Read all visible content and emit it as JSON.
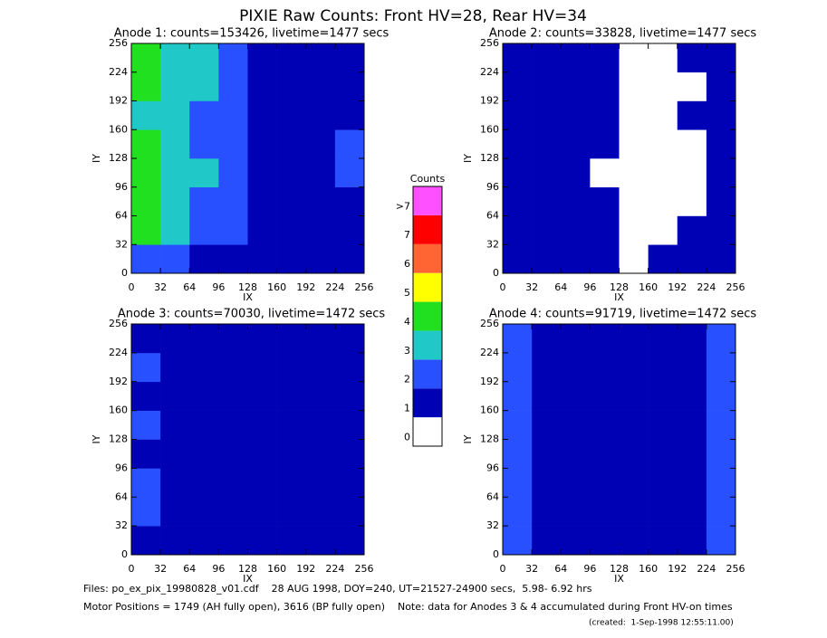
{
  "title": "PIXIE Raw Counts:  Front HV=28, Rear HV=34",
  "colorbar": {
    "title": "Counts",
    "ticks": [
      0,
      1,
      2,
      3,
      4,
      5,
      6,
      7,
      {
        "value": 8,
        "label": ">7"
      }
    ],
    "colors": [
      "#ffffff",
      "#0000b4",
      "#2850ff",
      "#20c8c8",
      "#20e020",
      "#ffff00",
      "#ff6432",
      "#ff0000",
      "#ff50ff"
    ]
  },
  "chart_data": [
    {
      "type": "heatmap",
      "title": "Anode 1: counts=153426, livetime=1477 secs",
      "xlabel": "IX",
      "ylabel": "IY",
      "xlim": [
        0,
        256
      ],
      "ylim": [
        0,
        256
      ],
      "xticks": [
        0,
        32,
        64,
        96,
        128,
        160,
        192,
        224,
        256
      ],
      "yticks": [
        0,
        32,
        64,
        96,
        128,
        160,
        192,
        224,
        256
      ],
      "z": [
        [
          2,
          2,
          1,
          1,
          1,
          1,
          1,
          1
        ],
        [
          4,
          3,
          2,
          2,
          1,
          1,
          1,
          1
        ],
        [
          4,
          3,
          2,
          2,
          1,
          1,
          1,
          1
        ],
        [
          4,
          3,
          3,
          2,
          1,
          1,
          1,
          2
        ],
        [
          4,
          3,
          2,
          2,
          1,
          1,
          1,
          2
        ],
        [
          3,
          3,
          2,
          2,
          1,
          1,
          1,
          1
        ],
        [
          4,
          3,
          3,
          2,
          1,
          1,
          1,
          1
        ],
        [
          4,
          3,
          3,
          2,
          1,
          1,
          1,
          1
        ]
      ]
    },
    {
      "type": "heatmap",
      "title": "Anode 2: counts=33828, livetime=1477 secs",
      "xlabel": "IX",
      "ylabel": "IY",
      "xlim": [
        0,
        256
      ],
      "ylim": [
        0,
        256
      ],
      "xticks": [
        0,
        32,
        64,
        96,
        128,
        160,
        192,
        224,
        256
      ],
      "yticks": [
        0,
        32,
        64,
        96,
        128,
        160,
        192,
        224,
        256
      ],
      "z": [
        [
          1,
          1,
          1,
          1,
          0,
          1,
          1,
          1
        ],
        [
          1,
          1,
          1,
          1,
          0,
          0,
          1,
          1
        ],
        [
          1,
          1,
          1,
          1,
          0,
          0,
          0,
          1
        ],
        [
          1,
          1,
          1,
          0,
          0,
          0,
          0,
          1
        ],
        [
          1,
          1,
          1,
          1,
          0,
          0,
          0,
          1
        ],
        [
          1,
          1,
          1,
          1,
          0,
          0,
          1,
          1
        ],
        [
          1,
          1,
          1,
          1,
          0,
          0,
          0,
          1
        ],
        [
          1,
          1,
          1,
          1,
          0,
          0,
          1,
          1
        ]
      ]
    },
    {
      "type": "heatmap",
      "title": "Anode 3: counts=70030, livetime=1472 secs",
      "xlabel": "IX",
      "ylabel": "IY",
      "xlim": [
        0,
        256
      ],
      "ylim": [
        0,
        256
      ],
      "xticks": [
        0,
        32,
        64,
        96,
        128,
        160,
        192,
        224,
        256
      ],
      "yticks": [
        0,
        32,
        64,
        96,
        128,
        160,
        192,
        224,
        256
      ],
      "z": [
        [
          1,
          1,
          1,
          1,
          1,
          1,
          1,
          1
        ],
        [
          2,
          1,
          1,
          1,
          1,
          1,
          1,
          1
        ],
        [
          2,
          1,
          1,
          1,
          1,
          1,
          1,
          1
        ],
        [
          1,
          1,
          1,
          1,
          1,
          1,
          1,
          1
        ],
        [
          2,
          1,
          1,
          1,
          1,
          1,
          1,
          1
        ],
        [
          1,
          1,
          1,
          1,
          1,
          1,
          1,
          1
        ],
        [
          2,
          1,
          1,
          1,
          1,
          1,
          1,
          1
        ],
        [
          1,
          1,
          1,
          1,
          1,
          1,
          1,
          1
        ]
      ]
    },
    {
      "type": "heatmap",
      "title": "Anode 4: counts=91719, livetime=1472 secs",
      "xlabel": "IX",
      "ylabel": "IY",
      "xlim": [
        0,
        256
      ],
      "ylim": [
        0,
        256
      ],
      "xticks": [
        0,
        32,
        64,
        96,
        128,
        160,
        192,
        224,
        256
      ],
      "yticks": [
        0,
        32,
        64,
        96,
        128,
        160,
        192,
        224,
        256
      ],
      "z": [
        [
          2,
          1,
          1,
          1,
          1,
          1,
          1,
          2
        ],
        [
          2,
          1,
          1,
          1,
          1,
          1,
          1,
          2
        ],
        [
          2,
          1,
          1,
          1,
          1,
          1,
          1,
          2
        ],
        [
          2,
          1,
          1,
          1,
          1,
          1,
          1,
          2
        ],
        [
          2,
          1,
          1,
          1,
          1,
          1,
          1,
          2
        ],
        [
          2,
          1,
          1,
          1,
          1,
          1,
          1,
          2
        ],
        [
          2,
          1,
          1,
          1,
          1,
          1,
          1,
          2
        ],
        [
          2,
          1,
          1,
          1,
          1,
          1,
          1,
          2
        ]
      ]
    }
  ],
  "footer": {
    "files": "Files: po_ex_pix_19980828_v01.cdf    28 AUG 1998, DOY=240, UT=21527-24900 secs,  5.98- 6.92 hrs",
    "motor": "Motor Positions = 1749 (AH fully open), 3616 (BP fully open)    Note: data for Anodes 3 & 4 accumulated during Front HV-on times",
    "created": "(created:  1-Sep-1998 12:55:11.00)"
  }
}
